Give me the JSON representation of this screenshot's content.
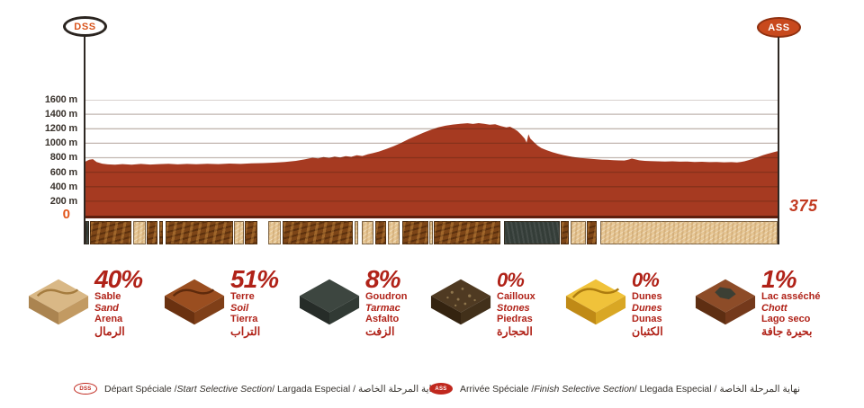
{
  "header": {
    "start_badge": "DSS",
    "finish_badge": "ASS"
  },
  "chart_data": {
    "type": "area",
    "xlabel": "",
    "ylabel": "",
    "y_unit": "m",
    "y_max": 1600,
    "x_max_km": 375,
    "grid": true,
    "fill_color": "#a63a21",
    "gridline_color": "rgba(70,32,15,0.33)",
    "y_ticks": [
      "1600 m",
      "1400 m",
      "1200 m",
      "1000 m",
      "800 m",
      "600 m",
      "400 m",
      "200 m"
    ],
    "x_start_label": "0",
    "x_end_label": "375",
    "profile": [
      [
        0,
        748
      ],
      [
        2,
        772
      ],
      [
        4,
        780
      ],
      [
        6,
        742
      ],
      [
        9,
        718
      ],
      [
        12,
        708
      ],
      [
        16,
        704
      ],
      [
        20,
        712
      ],
      [
        25,
        704
      ],
      [
        30,
        714
      ],
      [
        35,
        706
      ],
      [
        40,
        712
      ],
      [
        45,
        716
      ],
      [
        50,
        708
      ],
      [
        55,
        714
      ],
      [
        60,
        710
      ],
      [
        66,
        716
      ],
      [
        72,
        712
      ],
      [
        78,
        720
      ],
      [
        84,
        714
      ],
      [
        90,
        722
      ],
      [
        96,
        726
      ],
      [
        102,
        732
      ],
      [
        108,
        740
      ],
      [
        114,
        756
      ],
      [
        119,
        778
      ],
      [
        123,
        800
      ],
      [
        126,
        790
      ],
      [
        129,
        810
      ],
      [
        132,
        798
      ],
      [
        135,
        816
      ],
      [
        138,
        804
      ],
      [
        141,
        822
      ],
      [
        144,
        812
      ],
      [
        147,
        834
      ],
      [
        150,
        824
      ],
      [
        153,
        848
      ],
      [
        156,
        864
      ],
      [
        159,
        886
      ],
      [
        163,
        920
      ],
      [
        167,
        960
      ],
      [
        171,
        1005
      ],
      [
        175,
        1055
      ],
      [
        179,
        1100
      ],
      [
        183,
        1145
      ],
      [
        187,
        1185
      ],
      [
        191,
        1218
      ],
      [
        195,
        1242
      ],
      [
        199,
        1258
      ],
      [
        203,
        1268
      ],
      [
        207,
        1276
      ],
      [
        210,
        1266
      ],
      [
        213,
        1278
      ],
      [
        216,
        1268
      ],
      [
        219,
        1256
      ],
      [
        222,
        1262
      ],
      [
        225,
        1238
      ],
      [
        228,
        1218
      ],
      [
        230,
        1228
      ],
      [
        232,
        1202
      ],
      [
        234,
        1168
      ],
      [
        236,
        1120
      ],
      [
        238,
        1062
      ],
      [
        239,
        1008
      ],
      [
        240,
        1124
      ],
      [
        241,
        1066
      ],
      [
        243,
        1014
      ],
      [
        245,
        968
      ],
      [
        247,
        934
      ],
      [
        250,
        902
      ],
      [
        253,
        876
      ],
      [
        256,
        854
      ],
      [
        259,
        836
      ],
      [
        262,
        820
      ],
      [
        265,
        808
      ],
      [
        268,
        798
      ],
      [
        271,
        790
      ],
      [
        274,
        784
      ],
      [
        277,
        778
      ],
      [
        280,
        773
      ],
      [
        283,
        770
      ],
      [
        286,
        766
      ],
      [
        289,
        763
      ],
      [
        292,
        761
      ],
      [
        294,
        772
      ],
      [
        296,
        788
      ],
      [
        298,
        776
      ],
      [
        300,
        764
      ],
      [
        303,
        757
      ],
      [
        306,
        753
      ],
      [
        310,
        751
      ],
      [
        314,
        748
      ],
      [
        318,
        750
      ],
      [
        322,
        745
      ],
      [
        326,
        747
      ],
      [
        330,
        742
      ],
      [
        334,
        744
      ],
      [
        338,
        739
      ],
      [
        342,
        741
      ],
      [
        346,
        737
      ],
      [
        350,
        739
      ],
      [
        353,
        735
      ],
      [
        355,
        741
      ],
      [
        357,
        750
      ],
      [
        359,
        764
      ],
      [
        361,
        780
      ],
      [
        363,
        798
      ],
      [
        365,
        816
      ],
      [
        367,
        833
      ],
      [
        369,
        849
      ],
      [
        371,
        863
      ],
      [
        373,
        877
      ],
      [
        375,
        890
      ]
    ],
    "terrain_strip": [
      {
        "type": "tarmac",
        "from": 0,
        "to": 1.8
      },
      {
        "type": "soil",
        "from": 2.5,
        "to": 25
      },
      {
        "type": "sand",
        "from": 25.7,
        "to": 32.5
      },
      {
        "type": "soil",
        "from": 33.2,
        "to": 38.8
      },
      {
        "type": "soil",
        "from": 40,
        "to": 42
      },
      {
        "type": "soil",
        "from": 43.2,
        "to": 79.8
      },
      {
        "type": "sand",
        "from": 80.5,
        "to": 85.8
      },
      {
        "type": "soil",
        "from": 86.5,
        "to": 93
      },
      {
        "type": "sand",
        "from": 99,
        "to": 106
      },
      {
        "type": "soil",
        "from": 107,
        "to": 144.8
      },
      {
        "type": "sand",
        "from": 145.8,
        "to": 148
      },
      {
        "type": "sand",
        "from": 149.8,
        "to": 156
      },
      {
        "type": "soil",
        "from": 157,
        "to": 163
      },
      {
        "type": "sand",
        "from": 164,
        "to": 170
      },
      {
        "type": "soil",
        "from": 171.8,
        "to": 185.8
      },
      {
        "type": "sand",
        "from": 186.5,
        "to": 188
      },
      {
        "type": "soil",
        "from": 188.8,
        "to": 225
      },
      {
        "type": "tarmac",
        "from": 226.8,
        "to": 256.8
      },
      {
        "type": "soil",
        "from": 257.5,
        "to": 262
      },
      {
        "type": "sand",
        "from": 262.8,
        "to": 271
      },
      {
        "type": "soil",
        "from": 271.8,
        "to": 277
      },
      {
        "type": "sand",
        "from": 278.8,
        "to": 375
      }
    ]
  },
  "legend": {
    "items": [
      {
        "type": "sand",
        "percent": "40%",
        "fr": "Sable",
        "en": "Sand",
        "es": "Arena",
        "ar": "الرمال"
      },
      {
        "type": "soil",
        "percent": "51%",
        "fr": "Terre",
        "en": "Soil",
        "es": "Tierra",
        "ar": "التراب"
      },
      {
        "type": "tarmac",
        "percent": "8%",
        "fr": "Goudron",
        "en": "Tarmac",
        "es": "Asfalto",
        "ar": "الزفت"
      },
      {
        "type": "stones",
        "percent": "0%",
        "fr": "Cailloux",
        "en": "Stones",
        "es": "Piedras",
        "ar": "الحجارة"
      },
      {
        "type": "dunes",
        "percent": "0%",
        "fr": "Dunes",
        "en": "Dunes",
        "es": "Dunas",
        "ar": "الكثبان"
      },
      {
        "type": "chott",
        "percent": "1%",
        "fr": "Lac asséché",
        "en": "Chott",
        "es": "Lago seco",
        "ar": "بحيرة جافة"
      }
    ]
  },
  "footer": {
    "start": {
      "badge": "DSS",
      "p1": "Départ Spéciale / ",
      "p2": "Start Selective Section",
      "p3": " / Largada Especial / ",
      "ar": "بداية المرحلة الخاصة"
    },
    "finish": {
      "badge": "ASS",
      "p1": "Arrivée Spéciale / ",
      "p2": "Finish Selective Section",
      "p3": " / Llegada Especial / ",
      "ar": "نهاية المرحلة الخاصة"
    }
  }
}
